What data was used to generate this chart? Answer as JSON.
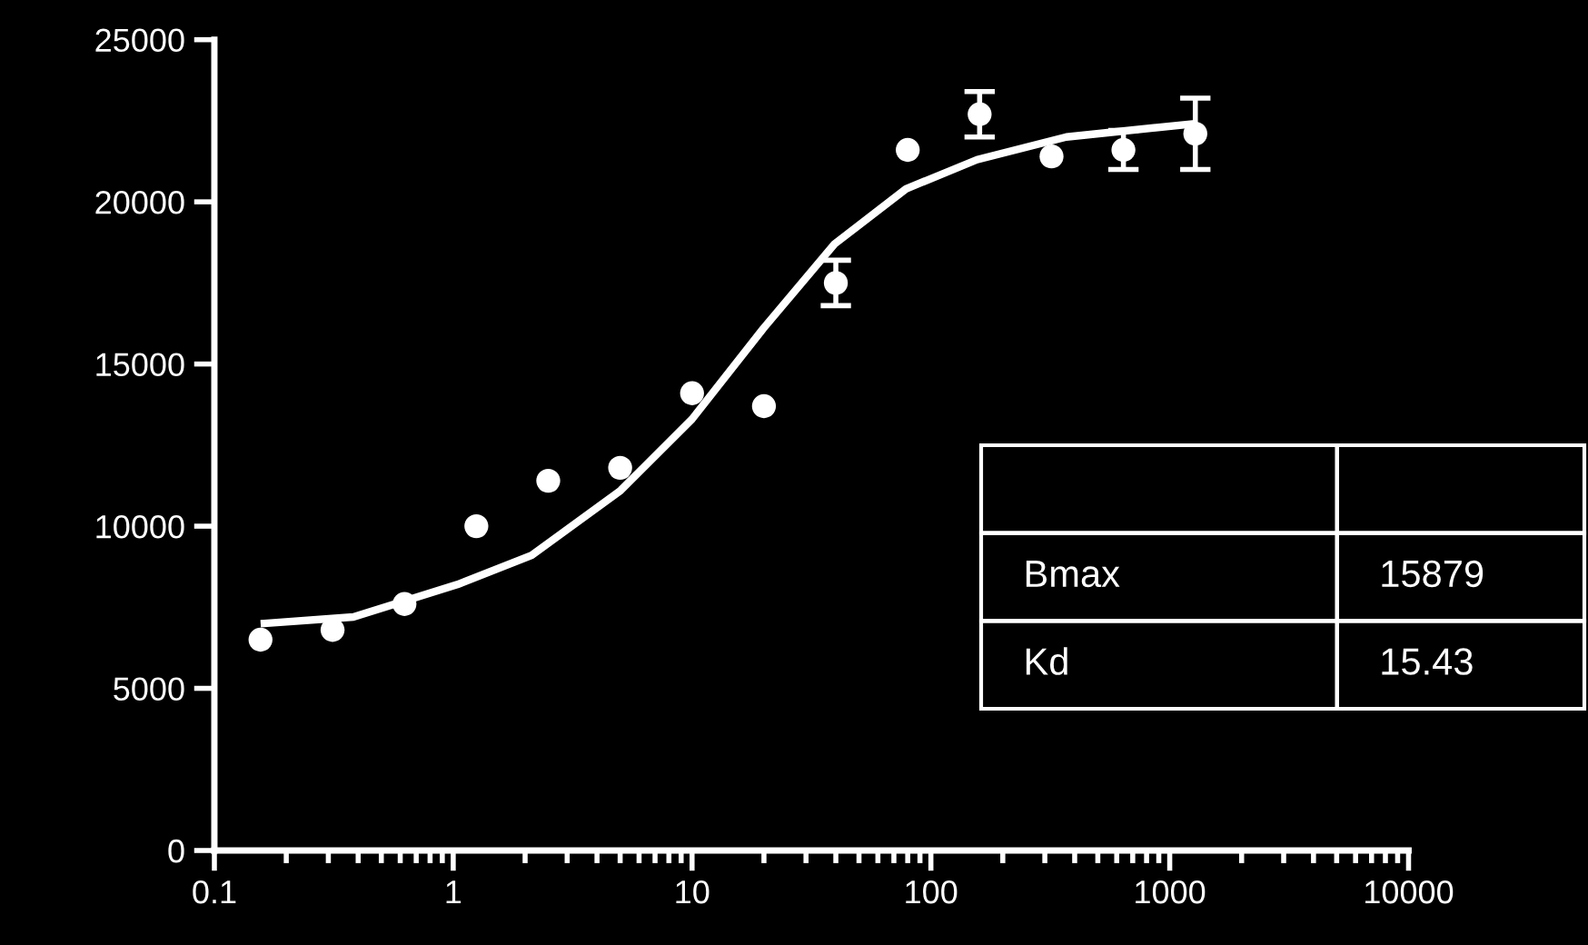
{
  "chart_data": [
    {
      "type": "scatter",
      "log": "x",
      "xlim": [
        0.1,
        10000
      ],
      "xticks": [
        0.1,
        1,
        10,
        100,
        1000,
        10000
      ],
      "ylim": [
        0,
        25000
      ],
      "yticks": [
        0,
        5000,
        10000,
        15000,
        20000,
        25000
      ],
      "grid": false,
      "series": [
        {
          "color": "#ffffff",
          "marker": "circle",
          "x": [
            0.156,
            0.3125,
            0.625,
            1.25,
            2.5,
            5,
            10,
            20,
            40,
            80,
            160,
            320,
            640,
            1280
          ],
          "values": [
            6500,
            6800,
            7600,
            10000,
            11400,
            11800,
            14100,
            13700,
            17500,
            21600,
            22700,
            21400,
            21600,
            22100
          ],
          "errors": [
            null,
            null,
            null,
            null,
            null,
            null,
            null,
            null,
            700,
            null,
            700,
            null,
            600,
            1100
          ]
        },
        {
          "type": "line",
          "color": "#ffffff",
          "marker": "none",
          "line_style": "solid",
          "x": [
            0.162,
            0.382,
            1.04,
            2.13,
            5.02,
            10,
            19.9,
            39.5,
            78.7,
            156,
            369,
            1230
          ],
          "values": [
            7000,
            7200,
            8200,
            9100,
            11100,
            13300,
            16100,
            18700,
            20400,
            21300,
            22000,
            22400
          ]
        }
      ]
    },
    {
      "type": "other",
      "annotations": [
        "Bmax",
        "15879",
        "Kd",
        "15.43"
      ]
    }
  ]
}
